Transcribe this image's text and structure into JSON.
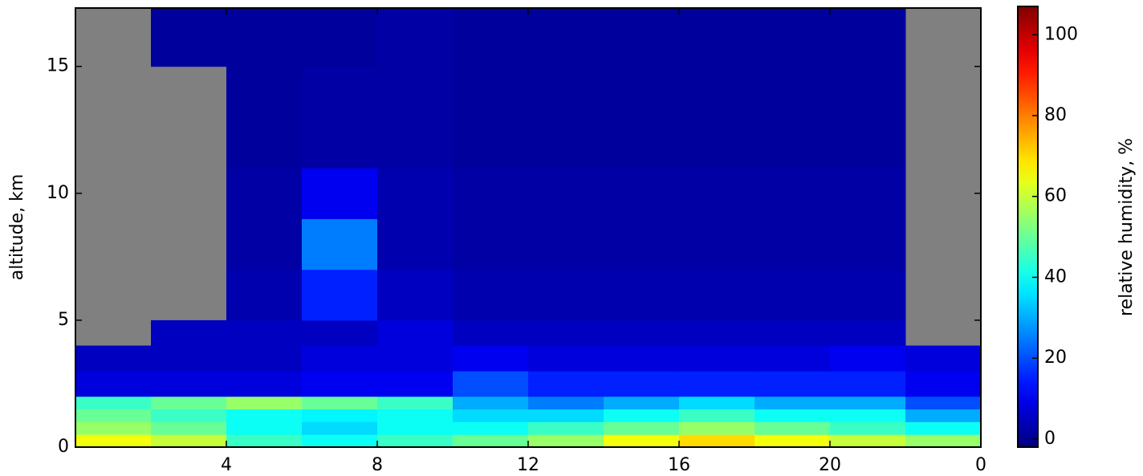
{
  "chart_data": {
    "type": "heatmap",
    "y_label": "altitude, km",
    "colorbar_label": "relative humidity, %",
    "cmap": "jet",
    "missing_color": "#808080",
    "x_bins": [
      0,
      2,
      4,
      6,
      8,
      10,
      12,
      14,
      16,
      18,
      20,
      22,
      24
    ],
    "y_bins": [
      0,
      0.5,
      1,
      1.5,
      2,
      3,
      4,
      5,
      7,
      9,
      11,
      13,
      15,
      17.3
    ],
    "values": [
      [
        65,
        60,
        45,
        40,
        45,
        50,
        55,
        65,
        70,
        65,
        60,
        55
      ],
      [
        55,
        50,
        40,
        35,
        40,
        40,
        45,
        50,
        55,
        50,
        45,
        40
      ],
      [
        50,
        45,
        40,
        38,
        40,
        35,
        35,
        40,
        45,
        40,
        40,
        30
      ],
      [
        45,
        50,
        55,
        50,
        45,
        30,
        25,
        30,
        35,
        30,
        30,
        20
      ],
      [
        8,
        8,
        8,
        10,
        10,
        20,
        15,
        15,
        15,
        15,
        15,
        10
      ],
      [
        5,
        5,
        5,
        8,
        8,
        10,
        8,
        8,
        8,
        8,
        10,
        8
      ],
      [
        null,
        5,
        5,
        5,
        8,
        5,
        5,
        5,
        5,
        5,
        5,
        null
      ],
      [
        null,
        null,
        3,
        15,
        5,
        3,
        3,
        3,
        3,
        3,
        3,
        null
      ],
      [
        null,
        null,
        2,
        25,
        3,
        2,
        2,
        2,
        2,
        2,
        2,
        null
      ],
      [
        null,
        null,
        2,
        10,
        3,
        2,
        2,
        2,
        2,
        2,
        2,
        null
      ],
      [
        null,
        null,
        1,
        2,
        2,
        1,
        1,
        1,
        1,
        1,
        1,
        null
      ],
      [
        null,
        null,
        1,
        2,
        2,
        1,
        1,
        1,
        1,
        1,
        1,
        null
      ],
      [
        null,
        1,
        1,
        1,
        2,
        1,
        1,
        1,
        1,
        1,
        1,
        null
      ]
    ],
    "xlim": [
      0,
      24
    ],
    "xticks": [
      4,
      8,
      12,
      16,
      20,
      {
        "value": 24,
        "label": "0"
      }
    ],
    "ylim": [
      0,
      17.3
    ],
    "yticks": [
      0,
      5,
      10,
      15
    ],
    "clim": [
      -2,
      107
    ],
    "cticks": [
      0,
      20,
      40,
      60,
      80,
      100
    ]
  }
}
